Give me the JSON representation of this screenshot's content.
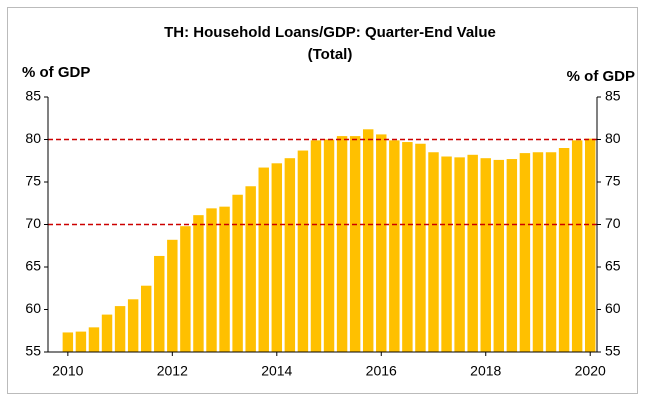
{
  "chart_data": {
    "type": "bar",
    "title": [
      "TH: Household Loans/GDP: Quarter-End Value",
      "(Total)"
    ],
    "ylabel": "% of GDP",
    "y2label": "% of GDP",
    "x": [
      2010,
      2010.25,
      2010.5,
      2010.75,
      2011,
      2011.25,
      2011.5,
      2011.75,
      2012,
      2012.25,
      2012.5,
      2012.75,
      2013,
      2013.25,
      2013.5,
      2013.75,
      2014,
      2014.25,
      2014.5,
      2014.75,
      2015,
      2015.25,
      2015.5,
      2015.75,
      2016,
      2016.25,
      2016.5,
      2016.75,
      2017,
      2017.25,
      2017.5,
      2017.75,
      2018,
      2018.25,
      2018.5,
      2018.75,
      2019,
      2019.25,
      2019.5,
      2019.75,
      2020
    ],
    "values": [
      57.3,
      57.4,
      57.9,
      59.4,
      60.4,
      61.2,
      62.8,
      66.3,
      68.2,
      69.8,
      71.1,
      71.9,
      72.1,
      73.5,
      74.5,
      76.7,
      77.2,
      77.8,
      78.7,
      79.9,
      80.0,
      80.4,
      80.4,
      81.2,
      80.6,
      79.9,
      79.7,
      79.5,
      78.5,
      78.0,
      77.9,
      78.2,
      77.8,
      77.6,
      77.7,
      78.4,
      78.5,
      78.5,
      79.0,
      79.9,
      80.1
    ],
    "color": "#ffc000",
    "xlim": [
      2009.62,
      2020.13
    ],
    "xticks": [
      2010,
      2012,
      2014,
      2016,
      2018,
      2020
    ],
    "ylim": [
      55,
      85
    ],
    "yticks": [
      55,
      60,
      65,
      70,
      75,
      80,
      85
    ],
    "y2lim": [
      55,
      85
    ],
    "y2ticks": [
      55,
      60,
      65,
      70,
      75,
      80,
      85
    ],
    "reference_lines": [
      70,
      80
    ],
    "reference_color": "#cc0000"
  }
}
